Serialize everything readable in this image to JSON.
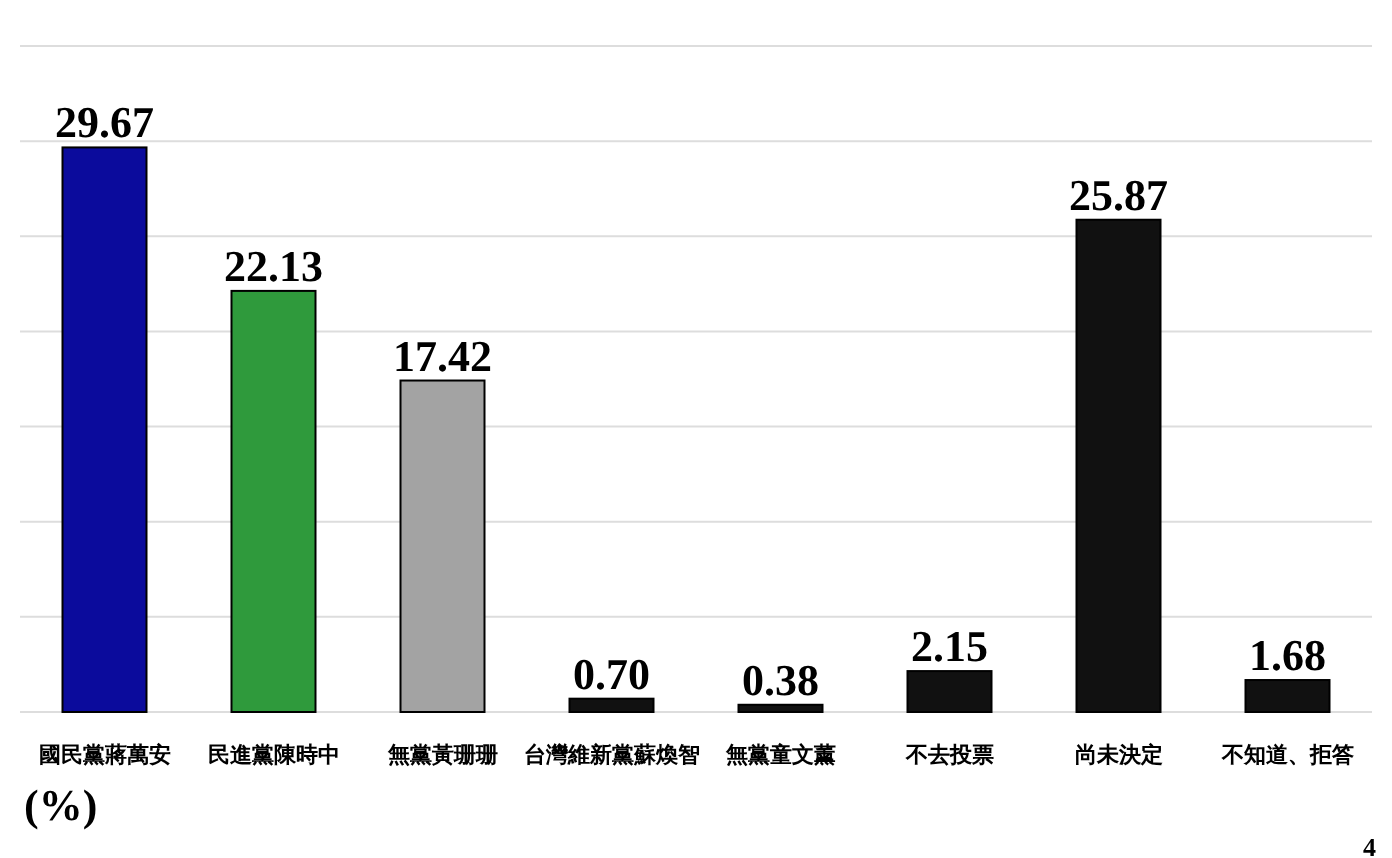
{
  "chart_data": {
    "type": "bar",
    "categories": [
      "國民黨蔣萬安",
      "民進黨陳時中",
      "無黨黃珊珊",
      "台灣維新黨蘇煥智",
      "無黨童文薰",
      "不去投票",
      "尚未決定",
      "不知道、拒答"
    ],
    "values": [
      29.67,
      22.13,
      17.42,
      0.7,
      0.38,
      2.15,
      25.87,
      1.68
    ],
    "value_labels": [
      "29.67",
      "22.13",
      "17.42",
      "0.70",
      "0.38",
      "2.15",
      "25.87",
      "1.68"
    ],
    "colors": [
      "#0b0b9c",
      "#2f9a3c",
      "#a3a3a3",
      "#111111",
      "#111111",
      "#111111",
      "#111111",
      "#111111"
    ],
    "ylim": [
      0,
      35
    ],
    "yticks": [
      {
        "value": 0,
        "label": null
      },
      {
        "value": 5,
        "label": null
      },
      {
        "value": 10,
        "label": null
      },
      {
        "value": 15,
        "label": null
      },
      {
        "value": 20,
        "label": null
      },
      {
        "value": 25,
        "label": null
      },
      {
        "value": 30,
        "label": null
      },
      {
        "value": 35,
        "label": null
      }
    ],
    "grid": "y",
    "annotations": [
      "(%)",
      "4"
    ]
  }
}
